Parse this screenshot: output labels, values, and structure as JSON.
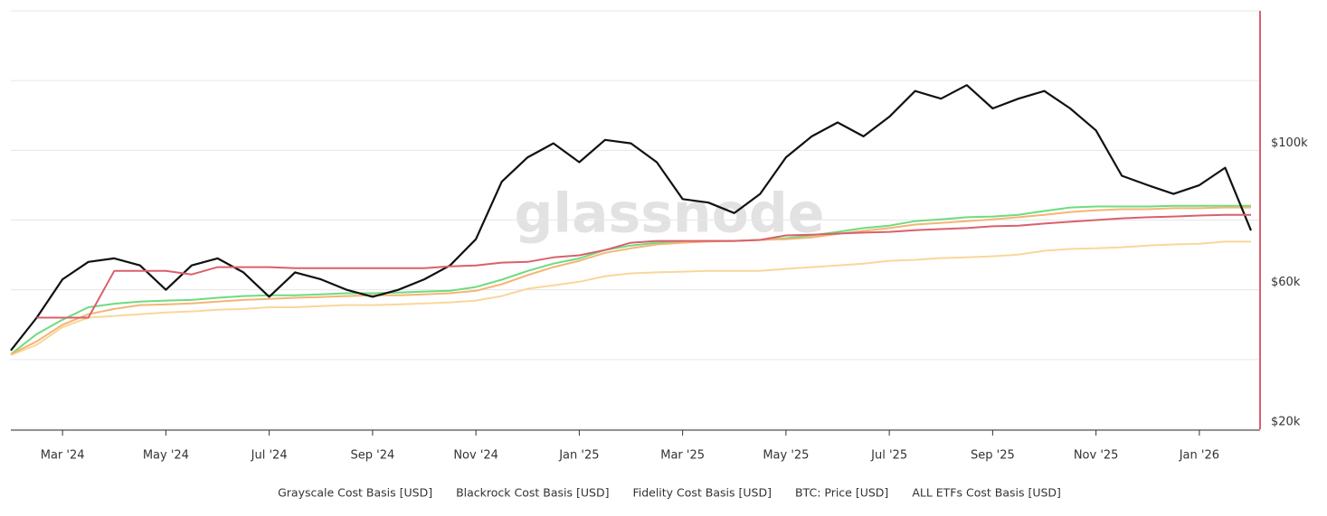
{
  "chart_data": {
    "type": "line",
    "watermark": "glassnode",
    "categories": [
      null,
      null,
      "Mar '24",
      null,
      null,
      null,
      "May '24",
      null,
      null,
      null,
      "Jul '24",
      null,
      null,
      null,
      "Sep '24",
      null,
      null,
      null,
      "Nov '24",
      null,
      null,
      null,
      "Jan '25",
      null,
      null,
      null,
      "Mar '25",
      null,
      null,
      null,
      "May '25",
      null,
      null,
      null,
      "Jul '25",
      null,
      null,
      null,
      "Sep '25",
      null,
      null,
      null,
      "Nov '25",
      null,
      null,
      null,
      "Jan '26",
      null,
      null
    ],
    "ylim": [
      20000,
      140000
    ],
    "yticks": [
      {
        "value": 20000,
        "label": "$20k"
      },
      {
        "value": 60000,
        "label": "$60k"
      },
      {
        "value": 100000,
        "label": "$100k"
      }
    ],
    "minor_yticks": [
      40000,
      80000,
      120000,
      140000
    ],
    "grid": true,
    "axis_color": "#d9606c",
    "series": [
      {
        "name": "Grayscale Cost Basis [USD]",
        "color": "#f9d79a",
        "values": [
          41300,
          44200,
          49300,
          52000,
          52500,
          53000,
          53500,
          53800,
          54300,
          54500,
          55000,
          55000,
          55300,
          55600,
          55600,
          55800,
          56100,
          56400,
          56900,
          58200,
          60300,
          61300,
          62300,
          63900,
          64700,
          65000,
          65200,
          65400,
          65400,
          65400,
          66000,
          66500,
          67000,
          67500,
          68300,
          68600,
          69100,
          69300,
          69600,
          70100,
          71200,
          71700,
          71900,
          72200,
          72700,
          73000,
          73200,
          73800,
          73800
        ]
      },
      {
        "name": "Blackrock Cost Basis [USD]",
        "color": "#6edb80",
        "values": [
          41500,
          47300,
          51400,
          55000,
          56000,
          56600,
          56900,
          57100,
          57700,
          58200,
          58400,
          58400,
          58700,
          59000,
          59000,
          59200,
          59500,
          59700,
          60800,
          62900,
          65400,
          67500,
          69000,
          71400,
          72700,
          73500,
          73800,
          74000,
          74000,
          74300,
          74800,
          75600,
          76600,
          77700,
          78400,
          79700,
          80200,
          80800,
          81000,
          81500,
          82600,
          83600,
          83900,
          83900,
          83900,
          84100,
          84100,
          84100,
          84100
        ]
      },
      {
        "name": "Fidelity Cost Basis [USD]",
        "color": "#f4b574",
        "values": [
          41500,
          45200,
          50000,
          53000,
          54500,
          55600,
          55800,
          56100,
          56600,
          57100,
          57400,
          57700,
          57900,
          58200,
          58400,
          58400,
          58700,
          59000,
          59700,
          61600,
          64200,
          66500,
          68300,
          70600,
          71900,
          73000,
          73500,
          73800,
          74000,
          74300,
          74500,
          75000,
          76000,
          76900,
          77700,
          78700,
          79200,
          79700,
          80200,
          80800,
          81500,
          82300,
          82800,
          83100,
          83100,
          83400,
          83400,
          83600,
          83600
        ]
      },
      {
        "name": "BTC: Price [USD]",
        "color": "#111111",
        "values": [
          42600,
          52000,
          63000,
          68000,
          69000,
          67000,
          60000,
          67000,
          69000,
          65000,
          58000,
          65000,
          63000,
          60000,
          58000,
          60000,
          63000,
          67000,
          74500,
          91000,
          98000,
          102000,
          96600,
          103000,
          102000,
          96600,
          86000,
          85000,
          82000,
          87500,
          98000,
          104000,
          108000,
          104000,
          109600,
          117000,
          114800,
          118700,
          112000,
          114800,
          117000,
          112000,
          105700,
          92700,
          90000,
          87500,
          90000,
          95000,
          77000
        ]
      },
      {
        "name": "ALL ETFs Cost Basis [USD]",
        "color": "#d9606c",
        "values": [
          null,
          52000,
          52000,
          52000,
          65400,
          65400,
          65400,
          64400,
          66500,
          66500,
          66500,
          66200,
          66200,
          66200,
          66200,
          66200,
          66200,
          66700,
          67000,
          67800,
          68000,
          69300,
          69900,
          71400,
          73500,
          74000,
          74000,
          74000,
          74000,
          74300,
          75600,
          75800,
          76100,
          76400,
          76600,
          77100,
          77400,
          77700,
          78200,
          78400,
          79000,
          79500,
          80000,
          80500,
          80800,
          81000,
          81300,
          81500,
          81500
        ]
      }
    ]
  }
}
